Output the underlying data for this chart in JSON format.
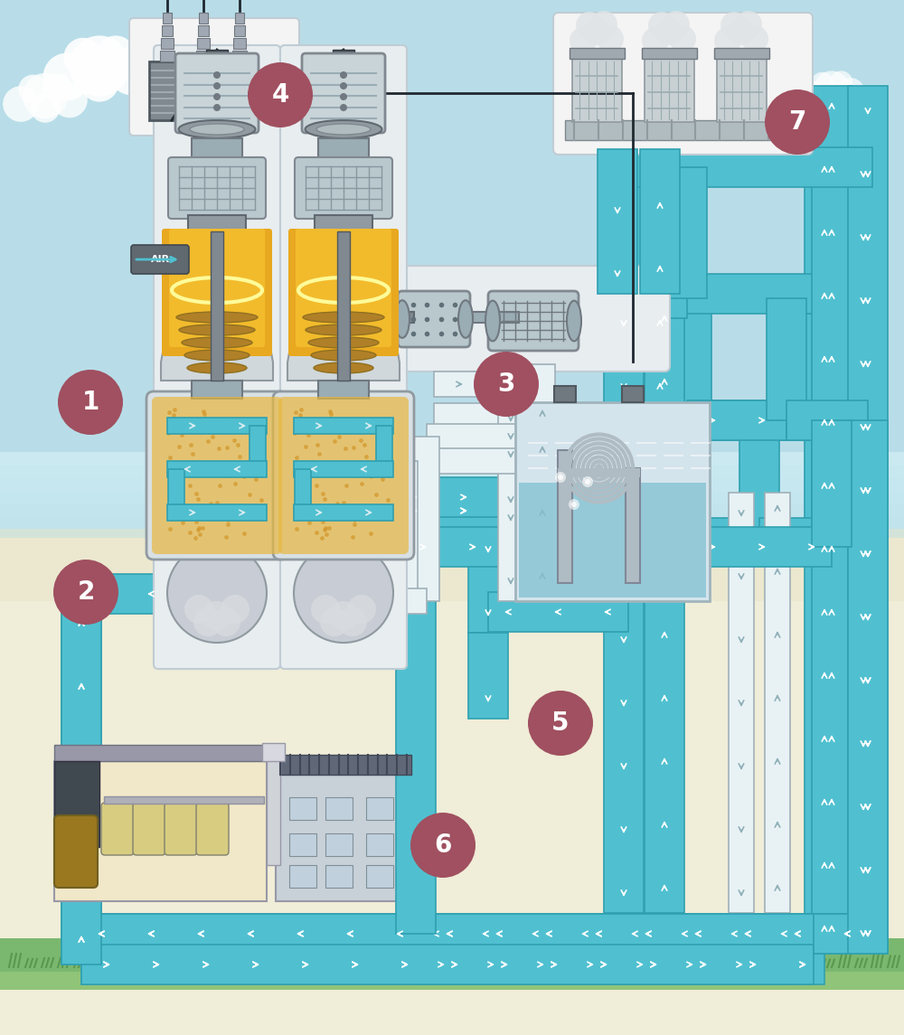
{
  "sky_color": "#b8dde8",
  "sky_mid": "#cce8f0",
  "ground_color": "#f0ecd0",
  "grass_color": "#7ab870",
  "grass_dark": "#5a9850",
  "pipe_blue": "#50c0d0",
  "pipe_blue_border": "#30a0b0",
  "pipe_white": "#e8f2f5",
  "pipe_gray_border": "#a0b0b8",
  "circle_bg": "#a05060",
  "turbine_panel": "#e8edf0",
  "turbine_panel_border": "#c0ccd4",
  "turbine_gray_light": "#c8d4d8",
  "turbine_gray_mid": "#9aacb4",
  "turbine_gray_dark": "#707880",
  "fire_orange": "#f0a020",
  "fire_yellow": "#f8d840",
  "vessel_fill": "#e8c870",
  "vessel_smoke": "#c8ccd0",
  "water_blue": "#80c0d0",
  "tank_bg": "#d4e4ec",
  "building_cream": "#f0e8c8",
  "building_gray": "#b0b8c0",
  "building_dark": "#808898",
  "transformer_dark": "#707880",
  "black": "#202830",
  "white": "#ffffff",
  "arrow_white": "#d8ecf0"
}
